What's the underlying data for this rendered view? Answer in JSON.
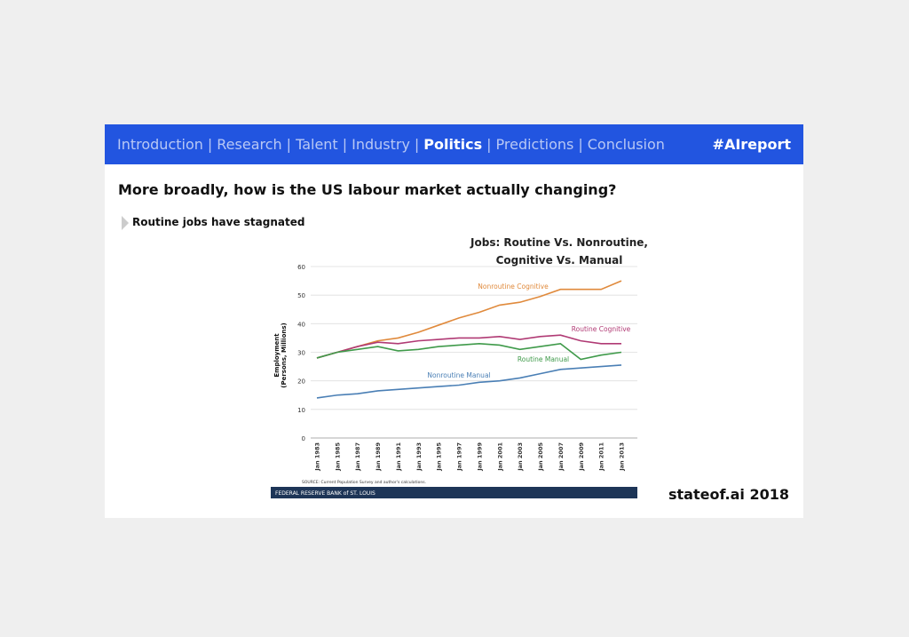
{
  "nav": {
    "items": [
      "Introduction",
      "Research",
      "Talent",
      "Industry",
      "Politics",
      "Predictions",
      "Conclusion"
    ],
    "separator": "|",
    "active_index": 4,
    "tag": "#AIreport"
  },
  "heading": "More broadly, how is the US labour market actually changing?",
  "bullet": "Routine jobs have stagnated",
  "footer": "stateof.ai 2018",
  "chart_data": {
    "type": "line",
    "title": "Jobs: Routine Vs. Nonroutine, Cognitive Vs. Manual",
    "ylabel": "Employment (Persons, Millions)",
    "categories": [
      "Jan 1983",
      "Jan 1985",
      "Jan 1987",
      "Jan 1989",
      "Jan 1991",
      "Jan 1993",
      "Jan 1995",
      "Jan 1997",
      "Jan 1999",
      "Jan 2001",
      "Jan 2003",
      "Jan 2005",
      "Jan 2007",
      "Jan 2009",
      "Jan 2011",
      "Jan 2013"
    ],
    "series": [
      {
        "name": "Nonroutine Cognitive",
        "color": "#e08a3c",
        "values": [
          28,
          30,
          32,
          34,
          35,
          37,
          39.5,
          42,
          44,
          46.5,
          47.5,
          49.5,
          52,
          52,
          52,
          55
        ]
      },
      {
        "name": "Routine Cognitive",
        "color": "#b03a74",
        "values": [
          28,
          30,
          32,
          33.5,
          33,
          34,
          34.5,
          35,
          35,
          35.5,
          34.5,
          35.5,
          36,
          34,
          33,
          33
        ]
      },
      {
        "name": "Routine Manual",
        "color": "#3f9a4a",
        "values": [
          28,
          30,
          31,
          32,
          30.5,
          31,
          32,
          32.5,
          33,
          32.5,
          31,
          32,
          33,
          27.5,
          29,
          30
        ]
      },
      {
        "name": "Nonroutine Manual",
        "color": "#4a7fb5",
        "values": [
          14,
          15,
          15.5,
          16.5,
          17,
          17.5,
          18,
          18.5,
          19.5,
          20,
          21,
          22.5,
          24,
          24.5,
          25,
          25.5
        ]
      }
    ],
    "ylim": [
      0,
      60
    ],
    "yticks": [
      0,
      10,
      20,
      30,
      40,
      50,
      60
    ],
    "grid": true,
    "source": "SOURCE: Current Population Survey and author's calculations.",
    "credit": "FEDERAL RESERVE BANK of ST. LOUIS"
  }
}
